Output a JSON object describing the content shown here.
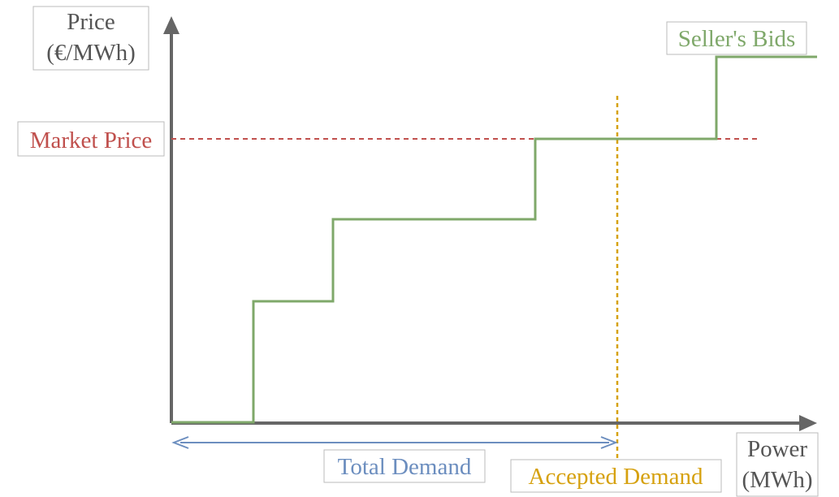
{
  "labels": {
    "price_axis_line1": "Price",
    "price_axis_line2": "(€/MWh)",
    "power_axis_line1": "Power",
    "power_axis_line2": "(MWh)",
    "market_price": "Market Price",
    "sellers_bids": "Seller's Bids",
    "total_demand": "Total Demand",
    "accepted_demand": "Accepted Demand"
  },
  "colors": {
    "axis": "#666666",
    "bids": "#7fa86a",
    "market_price": "#c0504d",
    "total_demand": "#6c8ebf",
    "accepted_demand": "#d6a10f",
    "label_box": "#bbbbbb"
  }
}
